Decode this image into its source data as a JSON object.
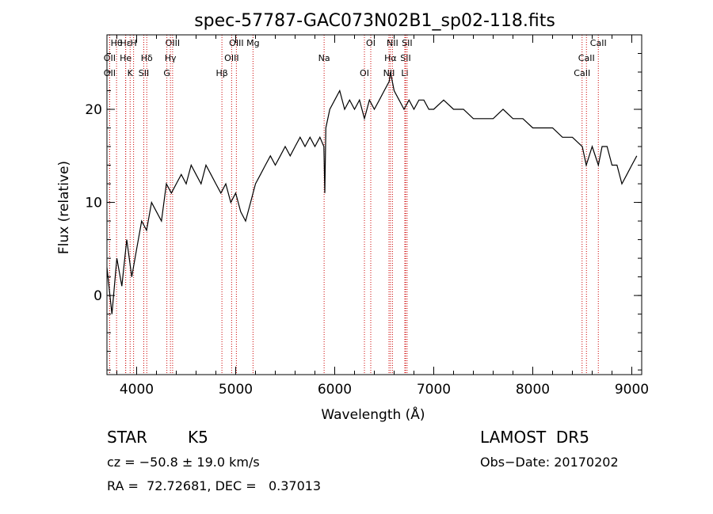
{
  "chart_data": {
    "type": "line",
    "title": "spec-57787-GAC073N02B1_sp02-118.fits",
    "xlabel": "Wavelength (Å)",
    "ylabel": "Flux (relative)",
    "xlim": [
      3700,
      9100
    ],
    "ylim": [
      -8.5,
      28
    ],
    "x_ticks": [
      4000,
      5000,
      6000,
      7000,
      8000,
      9000
    ],
    "y_ticks": [
      0,
      10,
      20
    ],
    "grid": false,
    "line_color": "#000000",
    "marker_color": "#cc0000",
    "series": [
      {
        "x": [
          3700,
          3750,
          3800,
          3850,
          3900,
          3950,
          4000,
          4050,
          4100,
          4150,
          4200,
          4250,
          4300,
          4350,
          4400,
          4450,
          4500,
          4550,
          4600,
          4650,
          4700,
          4750,
          4800,
          4850,
          4900,
          4950,
          5000,
          5050,
          5100,
          5150,
          5200,
          5250,
          5300,
          5350,
          5400,
          5450,
          5500,
          5550,
          5600,
          5650,
          5700,
          5750,
          5800,
          5850,
          5890,
          5900,
          5910,
          5950,
          6000,
          6050,
          6100,
          6150,
          6200,
          6250,
          6300,
          6350,
          6400,
          6450,
          6500,
          6550,
          6563,
          6600,
          6650,
          6700,
          6750,
          6800,
          6850,
          6900,
          6950,
          7000,
          7100,
          7200,
          7300,
          7400,
          7500,
          7600,
          7700,
          7800,
          7900,
          8000,
          8100,
          8200,
          8300,
          8400,
          8500,
          8540,
          8600,
          8662,
          8700,
          8750,
          8800,
          8850,
          8900,
          8950,
          9000,
          9050
        ],
        "y": [
          3,
          -2,
          4,
          1,
          6,
          2,
          5,
          8,
          7,
          10,
          9,
          8,
          12,
          11,
          12,
          13,
          12,
          14,
          13,
          12,
          14,
          13,
          12,
          11,
          12,
          10,
          11,
          9,
          8,
          10,
          12,
          13,
          14,
          15,
          14,
          15,
          16,
          15,
          16,
          17,
          16,
          17,
          16,
          17,
          16,
          11,
          18,
          20,
          21,
          22,
          20,
          21,
          20,
          21,
          19,
          21,
          20,
          21,
          22,
          23,
          24,
          22,
          21,
          20,
          21,
          20,
          21,
          21,
          20,
          20,
          21,
          20,
          20,
          19,
          19,
          19,
          20,
          19,
          19,
          18,
          18,
          18,
          17,
          17,
          16,
          14,
          16,
          14,
          16,
          16,
          14,
          14,
          12,
          13,
          14,
          15
        ]
      }
    ],
    "line_markers": [
      {
        "label": "Hθ",
        "x": 3797
      },
      {
        "label": "OII",
        "x": 3727
      },
      {
        "label": "OII",
        "x": 3727
      },
      {
        "label": "Hε",
        "x": 3889
      },
      {
        "label": "He",
        "x": 3889
      },
      {
        "label": "K",
        "x": 3934
      },
      {
        "label": "H",
        "x": 3969
      },
      {
        "label": "Hδ",
        "x": 4102
      },
      {
        "label": "SII",
        "x": 4072
      },
      {
        "label": "OIII",
        "x": 4363
      },
      {
        "label": "Hγ",
        "x": 4341
      },
      {
        "label": "G",
        "x": 4305
      },
      {
        "label": "OIII",
        "x": 5007
      },
      {
        "label": "OIII",
        "x": 4959
      },
      {
        "label": "Hβ",
        "x": 4861
      },
      {
        "label": "Mg",
        "x": 5175
      },
      {
        "label": "Na",
        "x": 5893
      },
      {
        "label": "OI",
        "x": 6300
      },
      {
        "label": "OI",
        "x": 6364
      },
      {
        "label": "Hα",
        "x": 6563
      },
      {
        "label": "NII",
        "x": 6548
      },
      {
        "label": "NII",
        "x": 6583
      },
      {
        "label": "SII",
        "x": 6716
      },
      {
        "label": "Li",
        "x": 6708
      },
      {
        "label": "SII",
        "x": 6731
      },
      {
        "label": "CaII",
        "x": 8542
      },
      {
        "label": "CaII",
        "x": 8498
      },
      {
        "label": "CaII",
        "x": 8662
      }
    ]
  },
  "info": {
    "star_class": "STAR",
    "subclass": "K5",
    "survey": "LAMOST  DR5",
    "cz": "cz = −50.8 ± 19.0 km/s",
    "obs_date": "Obs−Date: 20170202",
    "radec": "RA =  72.72681, DEC =   0.37013"
  }
}
